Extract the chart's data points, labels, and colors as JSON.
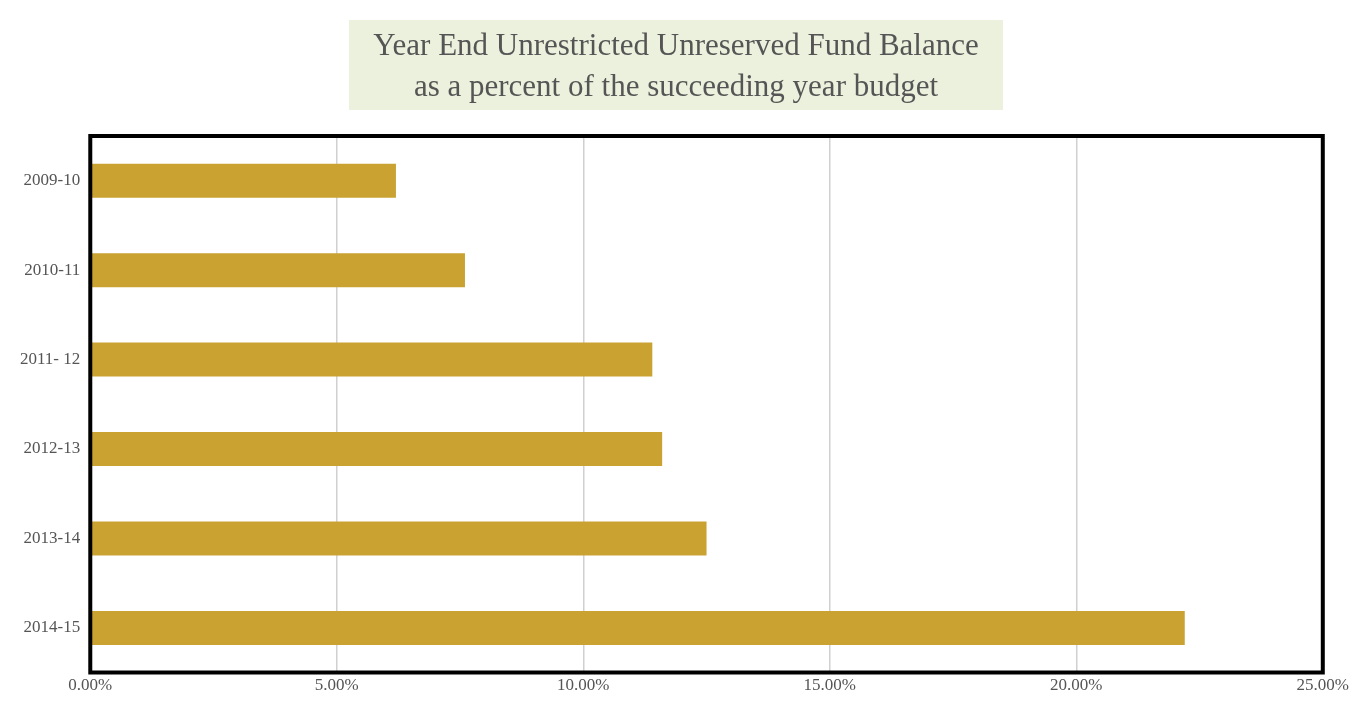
{
  "chart_data": {
    "type": "bar",
    "orientation": "horizontal",
    "title": "Year End Unrestricted Unreserved Fund Balance\nas a percent of the succeeding year budget",
    "categories": [
      "2009-10",
      "2010-11",
      "2011- 12",
      "2012-13",
      "2013-14",
      "2014-15"
    ],
    "values": [
      6.2,
      7.6,
      11.4,
      11.6,
      12.5,
      22.2
    ],
    "color": "#c9a232",
    "xlim": [
      0,
      25
    ],
    "xticks": [
      {
        "value": 0,
        "label": "0.00%"
      },
      {
        "value": 5,
        "label": "5.00%"
      },
      {
        "value": 10,
        "label": "10.00%"
      },
      {
        "value": 15,
        "label": "15.00%"
      },
      {
        "value": 20,
        "label": "20.00%"
      },
      {
        "value": 25,
        "label": "25.00%"
      }
    ],
    "grid": "x",
    "legend": false
  }
}
